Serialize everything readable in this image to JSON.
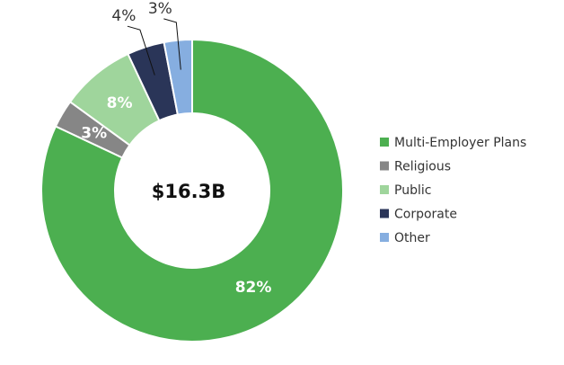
{
  "chart_data": {
    "type": "pie",
    "variant": "donut",
    "center_label": "$16.3B",
    "categories": [
      "Multi-Employer Plans",
      "Religious",
      "Public",
      "Corporate",
      "Other"
    ],
    "values": [
      82,
      3,
      8,
      4,
      3
    ],
    "value_labels": [
      "82%",
      "3%",
      "8%",
      "4%",
      "3%"
    ],
    "colors": [
      "#4caf50",
      "#868686",
      "#9fd59c",
      "#2a3558",
      "#86aee0"
    ],
    "legend_position": "right",
    "title": ""
  }
}
